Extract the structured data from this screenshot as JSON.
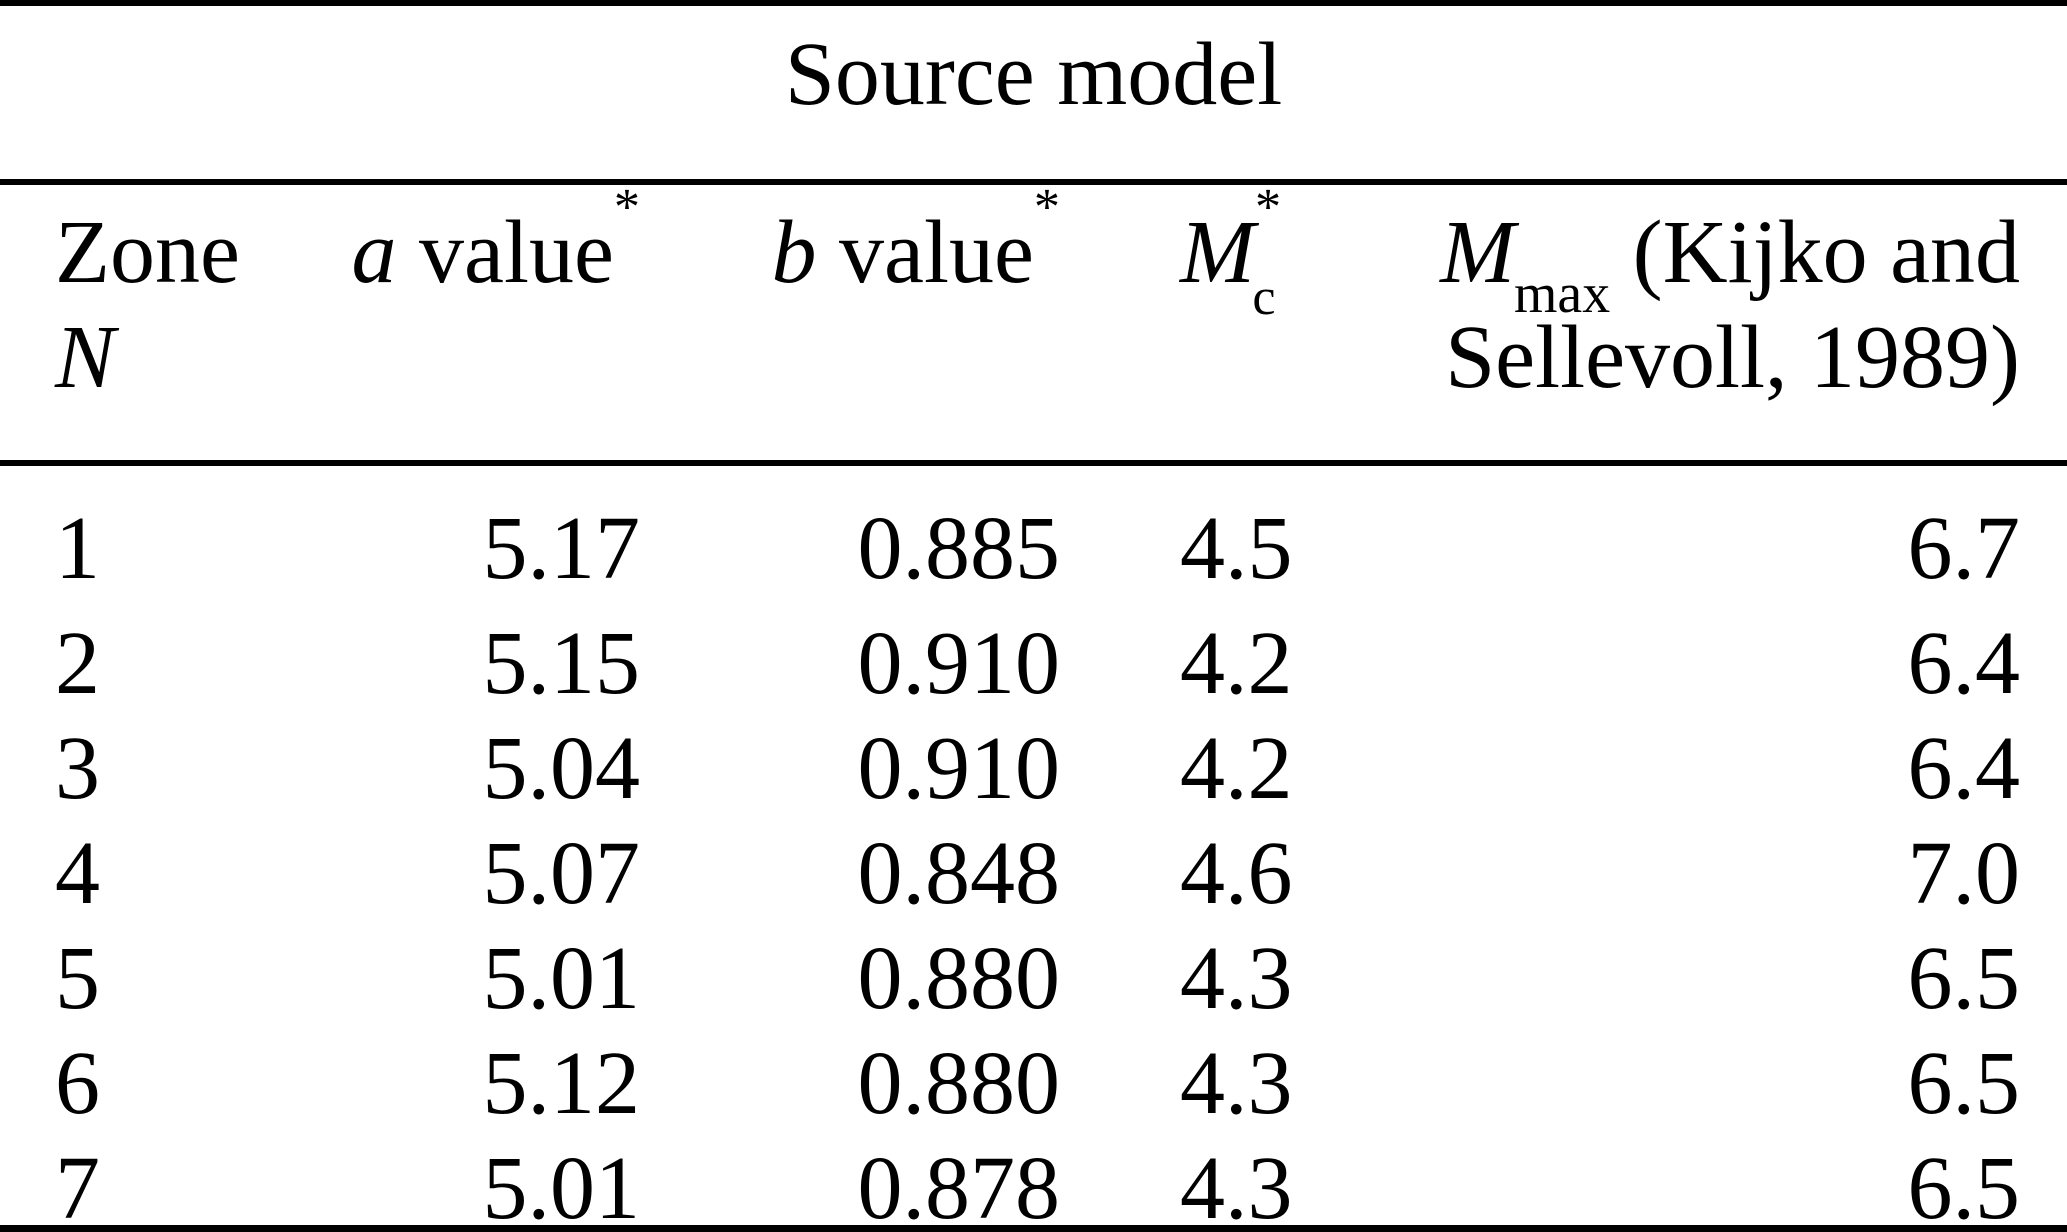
{
  "colors": {
    "background": "#ffffff",
    "text": "#000000",
    "rule": "#000000"
  },
  "table": {
    "title": "Source model",
    "header": {
      "zone_line1": "Zone",
      "zone_line2": "N",
      "a_italic": "a",
      "a_rest": " value",
      "a_sup": "*",
      "b_italic": "b",
      "b_rest": " value",
      "b_sup": "*",
      "mc_italic": "M",
      "mc_sup": "*",
      "mc_sub": "c",
      "mmax_italic": "M",
      "mmax_sub": "max",
      "mmax_rest_line1": " (Kijko and",
      "mmax_line2": "Sellevoll, 1989)"
    },
    "rows": [
      {
        "zone": "1",
        "a": "5.17",
        "b": "0.885",
        "mc": "4.5",
        "mmax": "6.7"
      },
      {
        "zone": "2",
        "a": "5.15",
        "b": "0.910",
        "mc": "4.2",
        "mmax": "6.4"
      },
      {
        "zone": "3",
        "a": "5.04",
        "b": "0.910",
        "mc": "4.2",
        "mmax": "6.4"
      },
      {
        "zone": "4",
        "a": "5.07",
        "b": "0.848",
        "mc": "4.6",
        "mmax": "7.0"
      },
      {
        "zone": "5",
        "a": "5.01",
        "b": "0.880",
        "mc": "4.3",
        "mmax": "6.5"
      },
      {
        "zone": "6",
        "a": "5.12",
        "b": "0.880",
        "mc": "4.3",
        "mmax": "6.5"
      },
      {
        "zone": "7",
        "a": "5.01",
        "b": "0.878",
        "mc": "4.3",
        "mmax": "6.5"
      }
    ]
  }
}
